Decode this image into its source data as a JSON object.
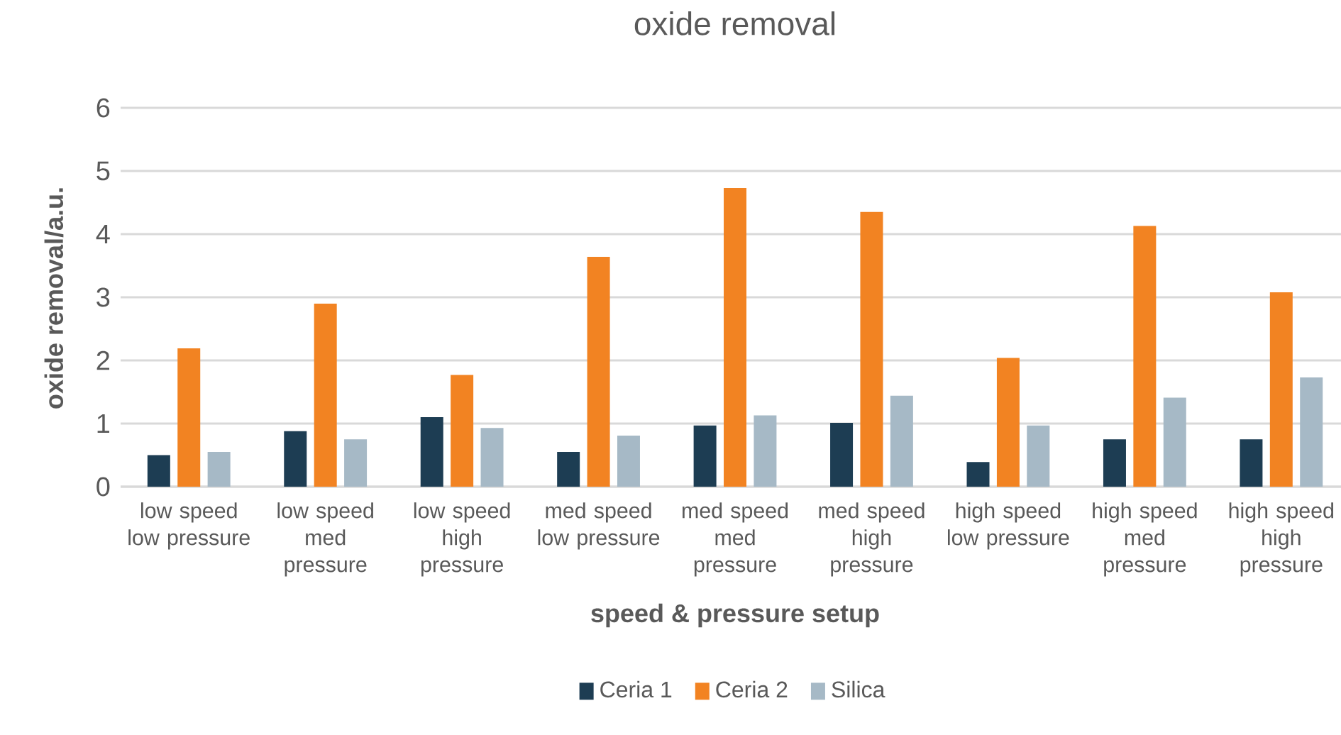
{
  "chart_data": {
    "type": "bar",
    "title": "oxide removal",
    "xlabel": "speed & pressure setup",
    "ylabel": "oxide removal/a.u.",
    "categories": [
      "low speed low pressure",
      "low speed med pressure",
      "low speed high pressure",
      "med speed low pressure",
      "med speed med pressure",
      "med speed high pressure",
      "high speed low pressure",
      "high speed med pressure",
      "high speed high pressure"
    ],
    "series": [
      {
        "name": "Ceria 1",
        "color": "#1d3d53",
        "values": [
          0.5,
          0.88,
          1.1,
          0.55,
          0.97,
          1.01,
          0.39,
          0.75,
          0.75
        ]
      },
      {
        "name": "Ceria 2",
        "color": "#f28322",
        "values": [
          2.19,
          2.9,
          1.77,
          3.64,
          4.73,
          4.35,
          2.04,
          4.13,
          3.08
        ]
      },
      {
        "name": "Silica",
        "color": "#a6b9c6",
        "values": [
          0.55,
          0.75,
          0.93,
          0.81,
          1.13,
          1.44,
          0.97,
          1.41,
          1.73
        ]
      }
    ],
    "ylim": [
      0,
      6
    ],
    "yticks": [
      0,
      1,
      2,
      3,
      4,
      5,
      6
    ],
    "grid": "y",
    "legend": "bottom"
  }
}
